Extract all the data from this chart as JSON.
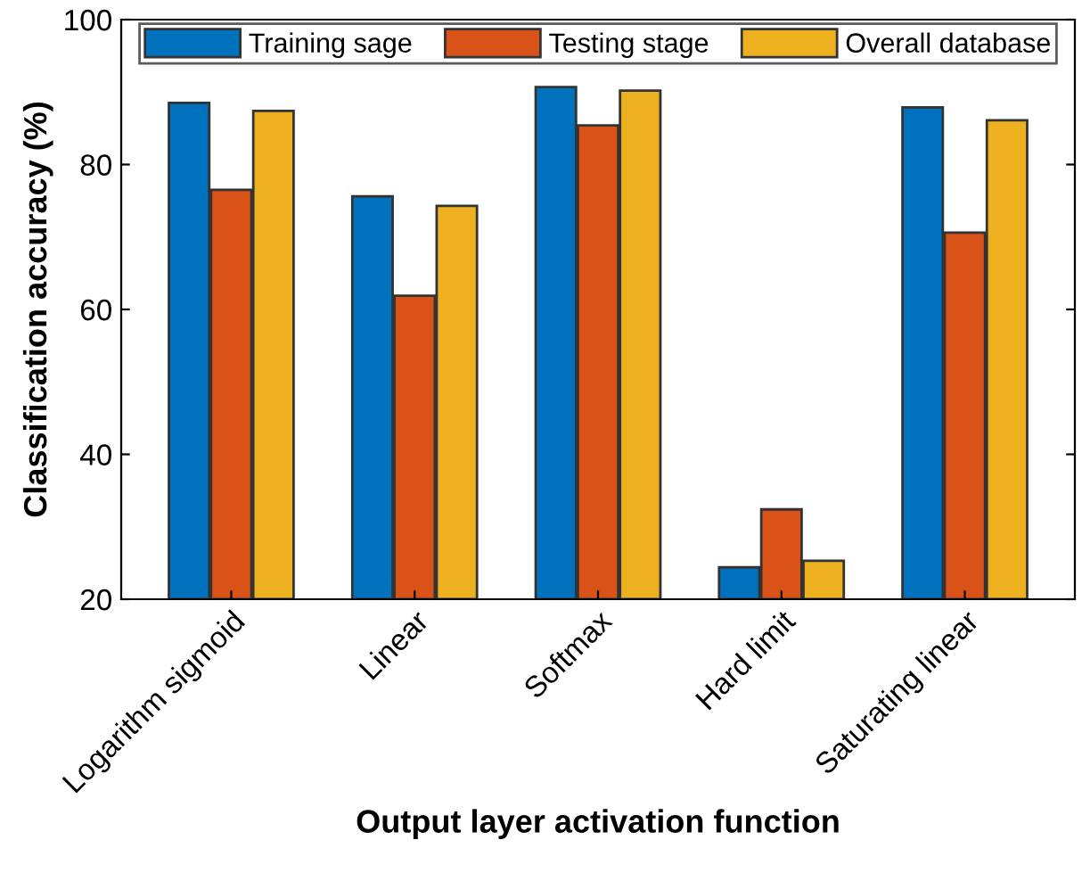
{
  "chart_data": {
    "type": "bar",
    "xlabel": "Output layer activation function",
    "ylabel": "Classification accuracy (%)",
    "categories": [
      "Logarithm sigmoid",
      "Linear",
      "Softmax",
      "Hard limit",
      "Saturating linear"
    ],
    "series": [
      {
        "name": "Training sage",
        "color": "#0072bd",
        "values": [
          88.5,
          75.6,
          90.7,
          24.4,
          87.9
        ]
      },
      {
        "name": "Testing stage",
        "color": "#d95319",
        "values": [
          76.5,
          61.9,
          85.4,
          32.4,
          70.6
        ]
      },
      {
        "name": "Overall database",
        "color": "#edb120",
        "values": [
          87.4,
          74.3,
          90.2,
          25.3,
          86.1
        ]
      }
    ],
    "ylim": [
      20,
      100
    ],
    "yticks": [
      20,
      40,
      60,
      80,
      100
    ],
    "grid": false,
    "legend": "top"
  }
}
